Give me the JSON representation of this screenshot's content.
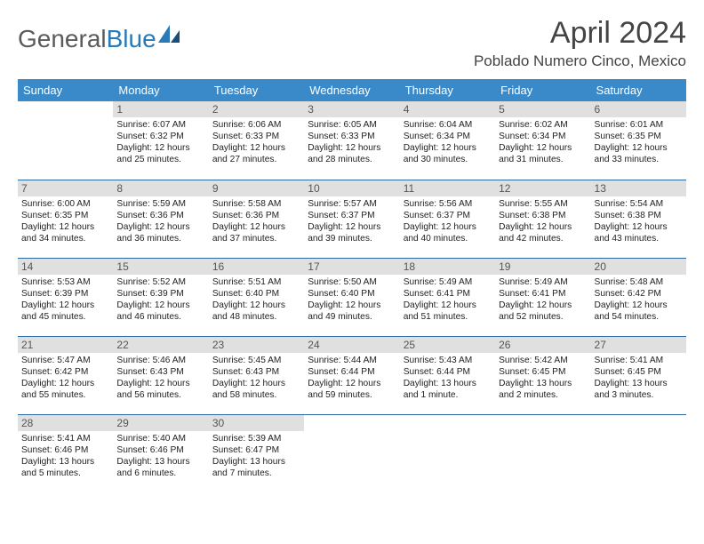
{
  "brand": {
    "part1": "General",
    "part2": "Blue"
  },
  "title": "April 2024",
  "location": "Poblado Numero Cinco, Mexico",
  "colors": {
    "header_bg": "#3a8ac9",
    "header_text": "#ffffff",
    "daynum_bg": "#e0e0e0",
    "daynum_text": "#555555",
    "cell_border": "#2a6aa0",
    "text": "#222222",
    "brand_gray": "#5a5a5a",
    "brand_blue": "#2a7ab8"
  },
  "weekdays": [
    "Sunday",
    "Monday",
    "Tuesday",
    "Wednesday",
    "Thursday",
    "Friday",
    "Saturday"
  ],
  "weeks": [
    [
      {
        "n": "",
        "sr": "",
        "ss": "",
        "dl": ""
      },
      {
        "n": "1",
        "sr": "6:07 AM",
        "ss": "6:32 PM",
        "dl": "12 hours and 25 minutes."
      },
      {
        "n": "2",
        "sr": "6:06 AM",
        "ss": "6:33 PM",
        "dl": "12 hours and 27 minutes."
      },
      {
        "n": "3",
        "sr": "6:05 AM",
        "ss": "6:33 PM",
        "dl": "12 hours and 28 minutes."
      },
      {
        "n": "4",
        "sr": "6:04 AM",
        "ss": "6:34 PM",
        "dl": "12 hours and 30 minutes."
      },
      {
        "n": "5",
        "sr": "6:02 AM",
        "ss": "6:34 PM",
        "dl": "12 hours and 31 minutes."
      },
      {
        "n": "6",
        "sr": "6:01 AM",
        "ss": "6:35 PM",
        "dl": "12 hours and 33 minutes."
      }
    ],
    [
      {
        "n": "7",
        "sr": "6:00 AM",
        "ss": "6:35 PM",
        "dl": "12 hours and 34 minutes."
      },
      {
        "n": "8",
        "sr": "5:59 AM",
        "ss": "6:36 PM",
        "dl": "12 hours and 36 minutes."
      },
      {
        "n": "9",
        "sr": "5:58 AM",
        "ss": "6:36 PM",
        "dl": "12 hours and 37 minutes."
      },
      {
        "n": "10",
        "sr": "5:57 AM",
        "ss": "6:37 PM",
        "dl": "12 hours and 39 minutes."
      },
      {
        "n": "11",
        "sr": "5:56 AM",
        "ss": "6:37 PM",
        "dl": "12 hours and 40 minutes."
      },
      {
        "n": "12",
        "sr": "5:55 AM",
        "ss": "6:38 PM",
        "dl": "12 hours and 42 minutes."
      },
      {
        "n": "13",
        "sr": "5:54 AM",
        "ss": "6:38 PM",
        "dl": "12 hours and 43 minutes."
      }
    ],
    [
      {
        "n": "14",
        "sr": "5:53 AM",
        "ss": "6:39 PM",
        "dl": "12 hours and 45 minutes."
      },
      {
        "n": "15",
        "sr": "5:52 AM",
        "ss": "6:39 PM",
        "dl": "12 hours and 46 minutes."
      },
      {
        "n": "16",
        "sr": "5:51 AM",
        "ss": "6:40 PM",
        "dl": "12 hours and 48 minutes."
      },
      {
        "n": "17",
        "sr": "5:50 AM",
        "ss": "6:40 PM",
        "dl": "12 hours and 49 minutes."
      },
      {
        "n": "18",
        "sr": "5:49 AM",
        "ss": "6:41 PM",
        "dl": "12 hours and 51 minutes."
      },
      {
        "n": "19",
        "sr": "5:49 AM",
        "ss": "6:41 PM",
        "dl": "12 hours and 52 minutes."
      },
      {
        "n": "20",
        "sr": "5:48 AM",
        "ss": "6:42 PM",
        "dl": "12 hours and 54 minutes."
      }
    ],
    [
      {
        "n": "21",
        "sr": "5:47 AM",
        "ss": "6:42 PM",
        "dl": "12 hours and 55 minutes."
      },
      {
        "n": "22",
        "sr": "5:46 AM",
        "ss": "6:43 PM",
        "dl": "12 hours and 56 minutes."
      },
      {
        "n": "23",
        "sr": "5:45 AM",
        "ss": "6:43 PM",
        "dl": "12 hours and 58 minutes."
      },
      {
        "n": "24",
        "sr": "5:44 AM",
        "ss": "6:44 PM",
        "dl": "12 hours and 59 minutes."
      },
      {
        "n": "25",
        "sr": "5:43 AM",
        "ss": "6:44 PM",
        "dl": "13 hours and 1 minute."
      },
      {
        "n": "26",
        "sr": "5:42 AM",
        "ss": "6:45 PM",
        "dl": "13 hours and 2 minutes."
      },
      {
        "n": "27",
        "sr": "5:41 AM",
        "ss": "6:45 PM",
        "dl": "13 hours and 3 minutes."
      }
    ],
    [
      {
        "n": "28",
        "sr": "5:41 AM",
        "ss": "6:46 PM",
        "dl": "13 hours and 5 minutes."
      },
      {
        "n": "29",
        "sr": "5:40 AM",
        "ss": "6:46 PM",
        "dl": "13 hours and 6 minutes."
      },
      {
        "n": "30",
        "sr": "5:39 AM",
        "ss": "6:47 PM",
        "dl": "13 hours and 7 minutes."
      },
      {
        "n": "",
        "sr": "",
        "ss": "",
        "dl": ""
      },
      {
        "n": "",
        "sr": "",
        "ss": "",
        "dl": ""
      },
      {
        "n": "",
        "sr": "",
        "ss": "",
        "dl": ""
      },
      {
        "n": "",
        "sr": "",
        "ss": "",
        "dl": ""
      }
    ]
  ],
  "labels": {
    "sunrise": "Sunrise:",
    "sunset": "Sunset:",
    "daylight": "Daylight:"
  }
}
